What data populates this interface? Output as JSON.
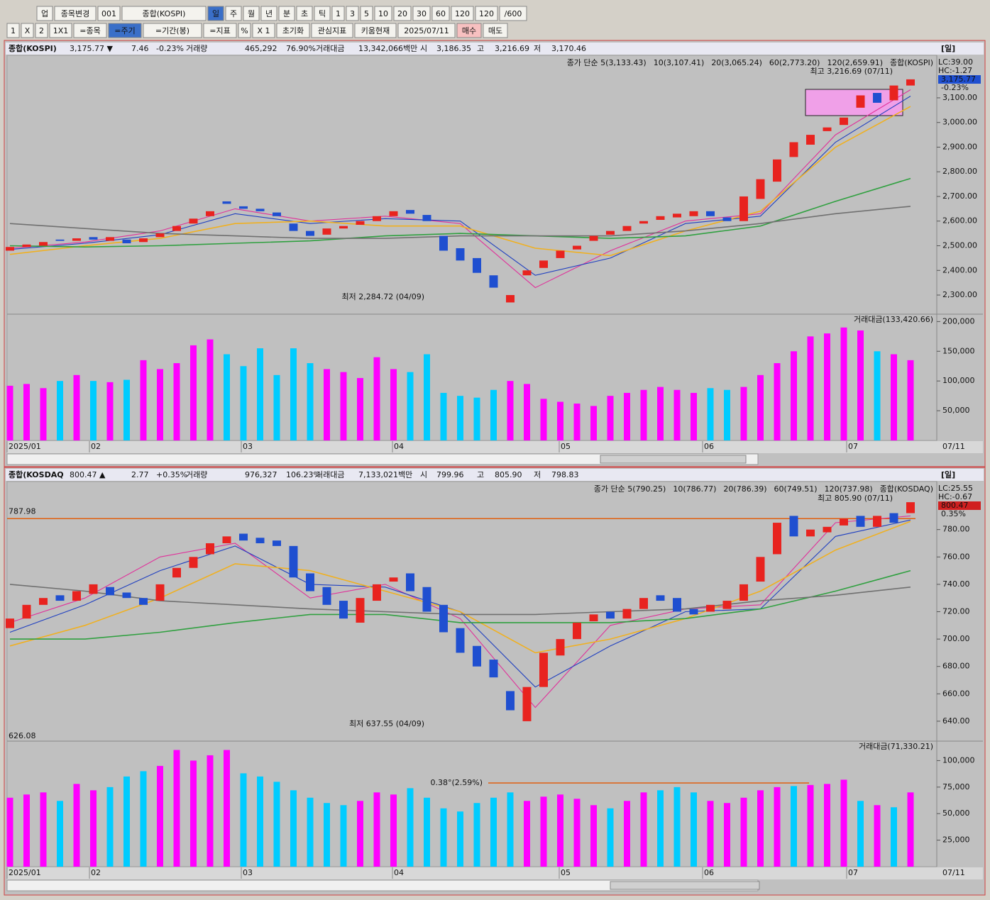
{
  "toolbar": {
    "row1": [
      "업",
      "종목변경",
      "001",
      "종합(KOSPI)",
      "일",
      "주",
      "월",
      "년",
      "분",
      "초",
      "틱",
      "1",
      "3",
      "5",
      "10",
      "20",
      "30",
      "60",
      "120",
      "120",
      "/600"
    ],
    "row2": [
      "1",
      "X",
      "2",
      "1X1",
      "=종목",
      "=주기",
      "=기간(봉)",
      "=지표",
      "%",
      "X 1",
      "초기화",
      "관심지표",
      "키움현재",
      "2025/07/11",
      "매수",
      "매도"
    ]
  },
  "panels": [
    {
      "info": [
        "종합(KOSPI)",
        "3,175.77 ▼",
        "7.46",
        "-0.23%",
        "거래량",
        "465,292",
        "76.90%",
        "거래대금",
        "13,342,066백만",
        "시",
        "3,186.35",
        "고",
        "3,216.69",
        "저",
        "3,170.46"
      ],
      "period": "[일]",
      "right_tags": [
        "LC:39.00",
        "HC:-1.27",
        "3,175.77",
        "-0.23%"
      ]
    },
    {
      "info": [
        "종합(KOSDAQ",
        "800.47 ▲",
        "2.77",
        "+0.35%",
        "거래량",
        "976,327",
        "106.23%",
        "거래대금",
        "7,133,021백만",
        "시",
        "799.96",
        "고",
        "805.90",
        "저",
        "798.83"
      ],
      "period": "[일]",
      "right_tags": [
        "LC:25.55",
        "HC:-0.67",
        "800.47",
        "0.35%"
      ]
    }
  ],
  "chart_data": [
    {
      "type": "candlestick",
      "up_color": "#e8231f",
      "down_color": "#1f4fd0",
      "open": [
        2480,
        2495,
        2500,
        2525,
        2520,
        2535,
        2520,
        2525,
        2515,
        2535,
        2560,
        2590,
        2620,
        2680,
        2660,
        2650,
        2635,
        2590,
        2560,
        2545,
        2570,
        2585,
        2600,
        2620,
        2645,
        2625,
        2540,
        2490,
        2450,
        2380,
        2270,
        2380,
        2410,
        2450,
        2485,
        2520,
        2545,
        2560,
        2590,
        2605,
        2615,
        2620,
        2640,
        2615,
        2600,
        2690,
        2760,
        2860,
        2910,
        2965,
        2990,
        3060,
        3120,
        3090,
        3150
      ],
      "close": [
        2495,
        2505,
        2515,
        2520,
        2530,
        2525,
        2535,
        2510,
        2530,
        2550,
        2580,
        2610,
        2640,
        2670,
        2650,
        2640,
        2620,
        2560,
        2540,
        2570,
        2580,
        2600,
        2620,
        2640,
        2630,
        2600,
        2480,
        2440,
        2390,
        2330,
        2300,
        2400,
        2440,
        2480,
        2500,
        2540,
        2560,
        2580,
        2600,
        2620,
        2630,
        2640,
        2620,
        2600,
        2700,
        2770,
        2850,
        2920,
        2950,
        2980,
        3020,
        3110,
        3080,
        3150,
        3175
      ],
      "series": [
        {
          "name": "종가 단순 5(3,133.43)",
          "color": "#e0309a",
          "values": [
            2490,
            2515,
            2560,
            2650,
            2600,
            2620,
            2590,
            2330,
            2480,
            2600,
            2630,
            2950,
            3133
          ]
        },
        {
          "name": "10(3,107.41)",
          "color": "#2040c0",
          "values": [
            2485,
            2510,
            2545,
            2630,
            2590,
            2610,
            2600,
            2380,
            2450,
            2590,
            2620,
            2920,
            3107
          ]
        },
        {
          "name": "20(3,065.24)",
          "color": "#f0b020",
          "values": [
            2465,
            2500,
            2530,
            2590,
            2600,
            2580,
            2580,
            2490,
            2460,
            2560,
            2640,
            2900,
            3065
          ]
        },
        {
          "name": "60(2,773.20)",
          "color": "#30a040",
          "values": [
            2500,
            2495,
            2500,
            2510,
            2520,
            2540,
            2550,
            2540,
            2530,
            2540,
            2580,
            2680,
            2773
          ]
        },
        {
          "name": "120(2,659.91)",
          "color": "#707070",
          "values": [
            2590,
            2570,
            2550,
            2540,
            2530,
            2530,
            2540,
            2540,
            2540,
            2560,
            2590,
            2630,
            2660
          ]
        }
      ],
      "symbol": "종합(KOSPI)",
      "annotations": [
        "최고 3,216.69 (07/11)",
        "최저 2,284.72 (04/09)"
      ],
      "ylim": [
        2231,
        3261
      ],
      "yticks": [
        {
          "value": 2300,
          "label": "2,300.00"
        },
        {
          "value": 2400,
          "label": "2,400.00"
        },
        {
          "value": 2500,
          "label": "2,500.00"
        },
        {
          "value": 2600,
          "label": "2,600.00"
        },
        {
          "value": 2700,
          "label": "2,700.00"
        },
        {
          "value": 2800,
          "label": "2,800.00"
        },
        {
          "value": 2900,
          "label": "2,900.00"
        },
        {
          "value": 3000,
          "label": "3,000.00"
        },
        {
          "value": 3100,
          "label": "3,100.00"
        }
      ],
      "x_labels": [
        "2025/01",
        "02",
        "03",
        "04",
        "05",
        "06",
        "07"
      ],
      "x_end": "07/11"
    },
    {
      "type": "bar",
      "name": "거래대금(133,420.66)",
      "up_color": "#ff00ff",
      "down_color": "#00ccff",
      "values": [
        92000,
        95000,
        88000,
        100000,
        110000,
        100000,
        98000,
        102000,
        135000,
        120000,
        130000,
        160000,
        170000,
        145000,
        125000,
        155000,
        110000,
        155000,
        130000,
        120000,
        115000,
        105000,
        140000,
        120000,
        115000,
        145000,
        80000,
        75000,
        72000,
        85000,
        100000,
        95000,
        70000,
        65000,
        62000,
        58000,
        75000,
        80000,
        85000,
        90000,
        85000,
        80000,
        88000,
        85000,
        90000,
        110000,
        130000,
        150000,
        175000,
        180000,
        190000,
        185000,
        150000,
        145000,
        135000
      ],
      "ylim": [
        0,
        210000
      ],
      "yticks": [
        {
          "value": 50000,
          "label": "50,000"
        },
        {
          "value": 100000,
          "label": "100,000"
        },
        {
          "value": 150000,
          "label": "150,000"
        },
        {
          "value": 200000,
          "label": "200,000"
        }
      ]
    },
    {
      "type": "candlestick",
      "up_color": "#e8231f",
      "down_color": "#1f4fd0",
      "open": [
        708,
        715,
        725,
        732,
        728,
        733,
        738,
        734,
        730,
        728,
        745,
        752,
        762,
        770,
        777,
        774,
        772,
        768,
        748,
        738,
        728,
        712,
        728,
        742,
        748,
        738,
        725,
        708,
        695,
        685,
        662,
        640,
        665,
        688,
        700,
        713,
        720,
        715,
        722,
        732,
        730,
        722,
        720,
        722,
        728,
        742,
        762,
        790,
        775,
        778,
        783,
        790,
        782,
        792,
        792
      ],
      "close": [
        715,
        725,
        730,
        728,
        735,
        740,
        732,
        730,
        725,
        740,
        752,
        760,
        770,
        775,
        772,
        770,
        768,
        745,
        735,
        725,
        715,
        730,
        740,
        745,
        735,
        720,
        705,
        690,
        680,
        672,
        648,
        665,
        690,
        700,
        712,
        718,
        715,
        722,
        730,
        728,
        720,
        718,
        725,
        728,
        740,
        760,
        785,
        775,
        780,
        782,
        788,
        782,
        790,
        785,
        800
      ],
      "series": [
        {
          "name": "종가 단순 5(790.25)",
          "color": "#e0309a",
          "values": [
            712,
            730,
            760,
            770,
            730,
            740,
            715,
            650,
            710,
            722,
            725,
            785,
            790
          ]
        },
        {
          "name": "10(786.77)",
          "color": "#2040c0",
          "values": [
            705,
            725,
            750,
            768,
            740,
            738,
            720,
            665,
            695,
            720,
            722,
            775,
            787
          ]
        },
        {
          "name": "20(786.39)",
          "color": "#f0b020",
          "values": [
            695,
            710,
            730,
            755,
            750,
            735,
            720,
            690,
            700,
            715,
            735,
            765,
            786
          ]
        },
        {
          "name": "60(749.51)",
          "color": "#30a040",
          "values": [
            700,
            700,
            705,
            712,
            718,
            718,
            712,
            712,
            712,
            715,
            722,
            735,
            750
          ]
        },
        {
          "name": "120(737.98)",
          "color": "#707070",
          "values": [
            740,
            735,
            728,
            725,
            722,
            720,
            718,
            718,
            720,
            722,
            728,
            732,
            738
          ]
        }
      ],
      "symbol": "종합(KOSDAQ)",
      "annotations": [
        "최고 805.90 (07/11)",
        "최저 637.55 (04/09)"
      ],
      "hline": 787.98,
      "bottom_label": 626.08,
      "ylim": [
        627,
        813
      ],
      "yticks": [
        {
          "value": 640,
          "label": "640.00"
        },
        {
          "value": 660,
          "label": "660.00"
        },
        {
          "value": 680,
          "label": "680.00"
        },
        {
          "value": 700,
          "label": "700.00"
        },
        {
          "value": 720,
          "label": "720.00"
        },
        {
          "value": 740,
          "label": "740.00"
        },
        {
          "value": 760,
          "label": "760.00"
        },
        {
          "value": 780,
          "label": "780.00"
        }
      ],
      "x_labels": [
        "2025/01",
        "02",
        "03",
        "04",
        "05",
        "06",
        "07"
      ],
      "x_end": "07/11"
    },
    {
      "type": "bar",
      "name": "거래대금(71,330.21)",
      "up_color": "#ff00ff",
      "down_color": "#00ccff",
      "trend_label": "0.38°(2.59%)",
      "values": [
        65000,
        68000,
        70000,
        62000,
        78000,
        72000,
        75000,
        85000,
        90000,
        95000,
        110000,
        100000,
        105000,
        110000,
        88000,
        85000,
        80000,
        72000,
        65000,
        60000,
        58000,
        62000,
        70000,
        68000,
        74000,
        65000,
        55000,
        52000,
        60000,
        65000,
        70000,
        62000,
        66000,
        68000,
        64000,
        58000,
        55000,
        62000,
        70000,
        72000,
        75000,
        70000,
        62000,
        60000,
        65000,
        72000,
        75000,
        76000,
        77000,
        78000,
        82000,
        62000,
        58000,
        56000,
        70000
      ],
      "ylim": [
        0,
        117000
      ],
      "yticks": [
        {
          "value": 25000,
          "label": "25,000"
        },
        {
          "value": 50000,
          "label": "50,000"
        },
        {
          "value": 75000,
          "label": "75,000"
        },
        {
          "value": 100000,
          "label": "100,000"
        }
      ]
    }
  ]
}
